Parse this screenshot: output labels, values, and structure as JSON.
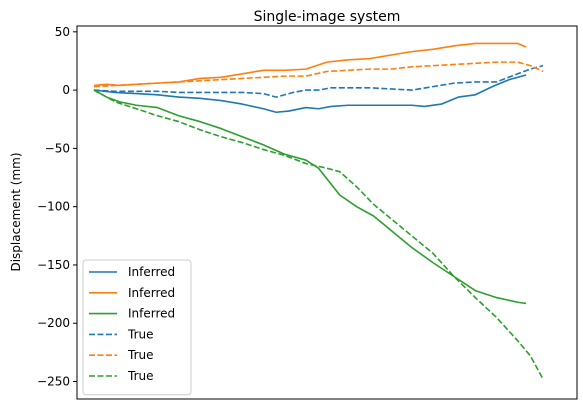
{
  "chart_data": {
    "type": "line",
    "title": "Single-image system",
    "xlabel": "",
    "ylabel": "Displacement (mm)",
    "ylim": [
      -265,
      55
    ],
    "yticks": [
      50,
      0,
      -50,
      -100,
      -150,
      -200,
      -250
    ],
    "ytick_labels": [
      "50",
      "0",
      "−50",
      "−100",
      "−150",
      "−200",
      "−250"
    ],
    "xlim": [
      -0.04,
      1.14
    ],
    "show_xticks": false,
    "grid": false,
    "legend": "lower-left",
    "series": [
      {
        "name": "Inferred",
        "color": "#1f77b4",
        "dash": "solid",
        "x": [
          0.0,
          0.05,
          0.1,
          0.15,
          0.2,
          0.25,
          0.3,
          0.35,
          0.4,
          0.43,
          0.46,
          0.5,
          0.53,
          0.56,
          0.6,
          0.65,
          0.7,
          0.75,
          0.78,
          0.82,
          0.86,
          0.9,
          0.94,
          0.98,
          1.02
        ],
        "y": [
          0,
          -2,
          -3,
          -4,
          -6,
          -7,
          -9,
          -12,
          -16,
          -19,
          -18,
          -15,
          -16,
          -14,
          -13,
          -13,
          -13,
          -13,
          -14,
          -12,
          -6,
          -4,
          3,
          9,
          13
        ]
      },
      {
        "name": "Inferred",
        "color": "#ff7f0e",
        "dash": "solid",
        "x": [
          0.0,
          0.03,
          0.06,
          0.1,
          0.15,
          0.2,
          0.25,
          0.3,
          0.35,
          0.4,
          0.45,
          0.5,
          0.55,
          0.6,
          0.65,
          0.7,
          0.75,
          0.8,
          0.85,
          0.9,
          0.95,
          1.0,
          1.02
        ],
        "y": [
          4,
          5,
          4,
          5,
          6,
          7,
          10,
          11,
          14,
          17,
          17,
          18,
          24,
          26,
          27,
          30,
          33,
          35,
          38,
          40,
          40,
          40,
          37
        ]
      },
      {
        "name": "Inferred",
        "color": "#2ca02c",
        "dash": "solid",
        "x": [
          0.0,
          0.03,
          0.06,
          0.1,
          0.15,
          0.2,
          0.25,
          0.3,
          0.35,
          0.4,
          0.45,
          0.5,
          0.53,
          0.58,
          0.62,
          0.66,
          0.7,
          0.75,
          0.8,
          0.85,
          0.9,
          0.95,
          1.0,
          1.02
        ],
        "y": [
          0,
          -6,
          -10,
          -13,
          -15,
          -22,
          -27,
          -33,
          -40,
          -47,
          -55,
          -60,
          -67,
          -90,
          -100,
          -108,
          -120,
          -135,
          -148,
          -160,
          -172,
          -178,
          -182,
          -183
        ]
      },
      {
        "name": "True",
        "color": "#1f77b4",
        "dash": "dashed",
        "x": [
          0.0,
          0.05,
          0.1,
          0.15,
          0.2,
          0.25,
          0.3,
          0.35,
          0.4,
          0.43,
          0.47,
          0.5,
          0.53,
          0.56,
          0.6,
          0.65,
          0.7,
          0.75,
          0.8,
          0.85,
          0.9,
          0.95,
          1.0,
          1.03,
          1.06
        ],
        "y": [
          0,
          -1,
          -1,
          -1,
          -2,
          -2,
          -2,
          -2,
          -3,
          -6,
          -2,
          0,
          0,
          2,
          2,
          2,
          1,
          0,
          3,
          6,
          7,
          7,
          14,
          18,
          21
        ]
      },
      {
        "name": "True",
        "color": "#ff7f0e",
        "dash": "dashed",
        "x": [
          0.0,
          0.05,
          0.1,
          0.15,
          0.2,
          0.25,
          0.3,
          0.35,
          0.4,
          0.45,
          0.5,
          0.55,
          0.6,
          0.65,
          0.7,
          0.75,
          0.8,
          0.85,
          0.9,
          0.95,
          1.0,
          1.03,
          1.06
        ],
        "y": [
          3,
          4,
          5,
          6,
          7,
          8,
          9,
          10,
          11,
          12,
          12,
          16,
          17,
          18,
          18,
          20,
          21,
          22,
          23,
          24,
          24,
          21,
          16
        ]
      },
      {
        "name": "True",
        "color": "#2ca02c",
        "dash": "dashed",
        "x": [
          0.0,
          0.05,
          0.1,
          0.15,
          0.2,
          0.25,
          0.3,
          0.35,
          0.4,
          0.45,
          0.5,
          0.55,
          0.58,
          0.62,
          0.66,
          0.7,
          0.75,
          0.8,
          0.85,
          0.9,
          0.95,
          1.0,
          1.03,
          1.06
        ],
        "y": [
          0,
          -10,
          -16,
          -22,
          -27,
          -34,
          -40,
          -45,
          -51,
          -56,
          -63,
          -67,
          -70,
          -83,
          -98,
          -110,
          -125,
          -140,
          -160,
          -178,
          -195,
          -215,
          -228,
          -248
        ]
      }
    ]
  }
}
